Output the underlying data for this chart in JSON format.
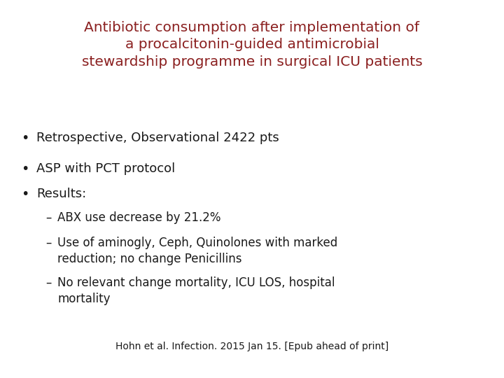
{
  "title_line1": "Antibiotic consumption after implementation of",
  "title_line2": "a procalcitonin-guided antimicrobial",
  "title_line3": "stewardship programme in surgical ICU patients",
  "title_color": "#8B2020",
  "background_color": "#FFFFFF",
  "text_color": "#1a1a1a",
  "bullet_points": [
    "Retrospective, Observational 2422 pts",
    "ASP with PCT protocol",
    "Results:"
  ],
  "sub_bullets": [
    "ABX use decrease by 21.2%",
    "Use of aminogly, Ceph, Quinolones with marked\nreduction; no change Penicillins",
    "No relevant change mortality, ICU LOS, hospital\nmortality"
  ],
  "citation": "Hohn et al. Infection. 2015 Jan 15. [Epub ahead of print]",
  "title_fontsize": 14.5,
  "bullet_fontsize": 13,
  "sub_bullet_fontsize": 12,
  "citation_fontsize": 10
}
